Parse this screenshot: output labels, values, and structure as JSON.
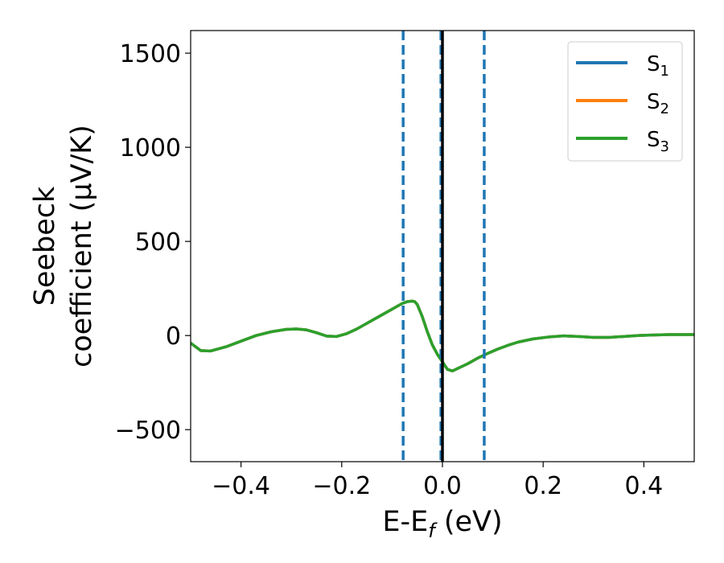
{
  "chart_data": {
    "type": "line",
    "xlabel": "E-E",
    "xlabel_sub": "f",
    "xlabel_unit": " (eV)",
    "ylabel_line1": "Seebeck",
    "ylabel_line2": "coefficient  (μV/K)",
    "xlim": [
      -0.5,
      0.5
    ],
    "ylim": [
      -670,
      1620
    ],
    "xticks": [
      -0.4,
      -0.2,
      0.0,
      0.2,
      0.4
    ],
    "xtick_labels": [
      "−0.4",
      "−0.2",
      "0.0",
      "0.2",
      "0.4"
    ],
    "yticks": [
      -500,
      0,
      500,
      1000,
      1500
    ],
    "ytick_labels": [
      "−500",
      "0",
      "500",
      "1000",
      "1500"
    ],
    "grid": false,
    "legend_position": "top-right",
    "series": [
      {
        "name": "S",
        "sub": "1",
        "color": "#1f77b4",
        "x": [
          -0.5,
          -0.48,
          -0.46,
          -0.43,
          -0.4,
          -0.37,
          -0.34,
          -0.31,
          -0.29,
          -0.27,
          -0.25,
          -0.23,
          -0.21,
          -0.19,
          -0.17,
          -0.15,
          -0.13,
          -0.11,
          -0.09,
          -0.08,
          -0.07,
          -0.06,
          -0.055,
          -0.05,
          -0.04,
          -0.03,
          -0.02,
          -0.01,
          0.0,
          0.01,
          0.02,
          0.03,
          0.05,
          0.07,
          0.09,
          0.11,
          0.13,
          0.15,
          0.18,
          0.21,
          0.24,
          0.27,
          0.3,
          0.33,
          0.36,
          0.39,
          0.42,
          0.45,
          0.48,
          0.5
        ],
        "y": [
          -40,
          -80,
          -82,
          -60,
          -30,
          0,
          20,
          33,
          35,
          30,
          15,
          -3,
          -5,
          10,
          35,
          65,
          95,
          125,
          155,
          170,
          180,
          183,
          180,
          165,
          100,
          20,
          -50,
          -100,
          -140,
          -180,
          -188,
          -175,
          -150,
          -120,
          -95,
          -72,
          -52,
          -35,
          -18,
          -8,
          -2,
          -5,
          -10,
          -10,
          -5,
          0,
          3,
          5,
          5,
          5
        ]
      },
      {
        "name": "S",
        "sub": "2",
        "color": "#ff7f0e",
        "x": [
          -0.5,
          -0.48,
          -0.46,
          -0.43,
          -0.4,
          -0.37,
          -0.34,
          -0.31,
          -0.29,
          -0.27,
          -0.25,
          -0.23,
          -0.21,
          -0.19,
          -0.17,
          -0.15,
          -0.13,
          -0.11,
          -0.09,
          -0.08,
          -0.07,
          -0.06,
          -0.055,
          -0.05,
          -0.04,
          -0.03,
          -0.02,
          -0.01,
          0.0,
          0.01,
          0.02,
          0.03,
          0.05,
          0.07,
          0.09,
          0.11,
          0.13,
          0.15,
          0.18,
          0.21,
          0.24,
          0.27,
          0.3,
          0.33,
          0.36,
          0.39,
          0.42,
          0.45,
          0.48,
          0.5
        ],
        "y": [
          -40,
          -80,
          -82,
          -60,
          -30,
          0,
          20,
          33,
          35,
          30,
          15,
          -3,
          -5,
          10,
          35,
          65,
          95,
          125,
          155,
          170,
          180,
          183,
          180,
          165,
          100,
          20,
          -50,
          -100,
          -140,
          -180,
          -188,
          -175,
          -150,
          -120,
          -95,
          -72,
          -52,
          -35,
          -18,
          -8,
          -2,
          -5,
          -10,
          -10,
          -5,
          0,
          3,
          5,
          5,
          5
        ]
      },
      {
        "name": "S",
        "sub": "3",
        "color": "#2ca02c",
        "x": [
          -0.5,
          -0.48,
          -0.46,
          -0.43,
          -0.4,
          -0.37,
          -0.34,
          -0.31,
          -0.29,
          -0.27,
          -0.25,
          -0.23,
          -0.21,
          -0.19,
          -0.17,
          -0.15,
          -0.13,
          -0.11,
          -0.09,
          -0.08,
          -0.07,
          -0.06,
          -0.055,
          -0.05,
          -0.04,
          -0.03,
          -0.02,
          -0.01,
          0.0,
          0.01,
          0.02,
          0.03,
          0.05,
          0.07,
          0.09,
          0.11,
          0.13,
          0.15,
          0.18,
          0.21,
          0.24,
          0.27,
          0.3,
          0.33,
          0.36,
          0.39,
          0.42,
          0.45,
          0.48,
          0.5
        ],
        "y": [
          -40,
          -80,
          -82,
          -60,
          -30,
          0,
          20,
          33,
          35,
          30,
          15,
          -3,
          -5,
          10,
          35,
          65,
          95,
          125,
          155,
          170,
          180,
          183,
          180,
          165,
          100,
          20,
          -50,
          -100,
          -140,
          -180,
          -188,
          -175,
          -150,
          -120,
          -95,
          -72,
          -52,
          -35,
          -18,
          -8,
          -2,
          -5,
          -10,
          -10,
          -5,
          0,
          3,
          5,
          5,
          5
        ]
      }
    ],
    "vlines": [
      {
        "x": -0.078,
        "style": "dashed",
        "color": "#1f77b4"
      },
      {
        "x": -0.003,
        "style": "dashed",
        "color": "#1f77b4"
      },
      {
        "x": 0.083,
        "style": "dashed",
        "color": "#1f77b4"
      },
      {
        "x": 0.0,
        "style": "solid",
        "color": "#000000"
      }
    ]
  }
}
